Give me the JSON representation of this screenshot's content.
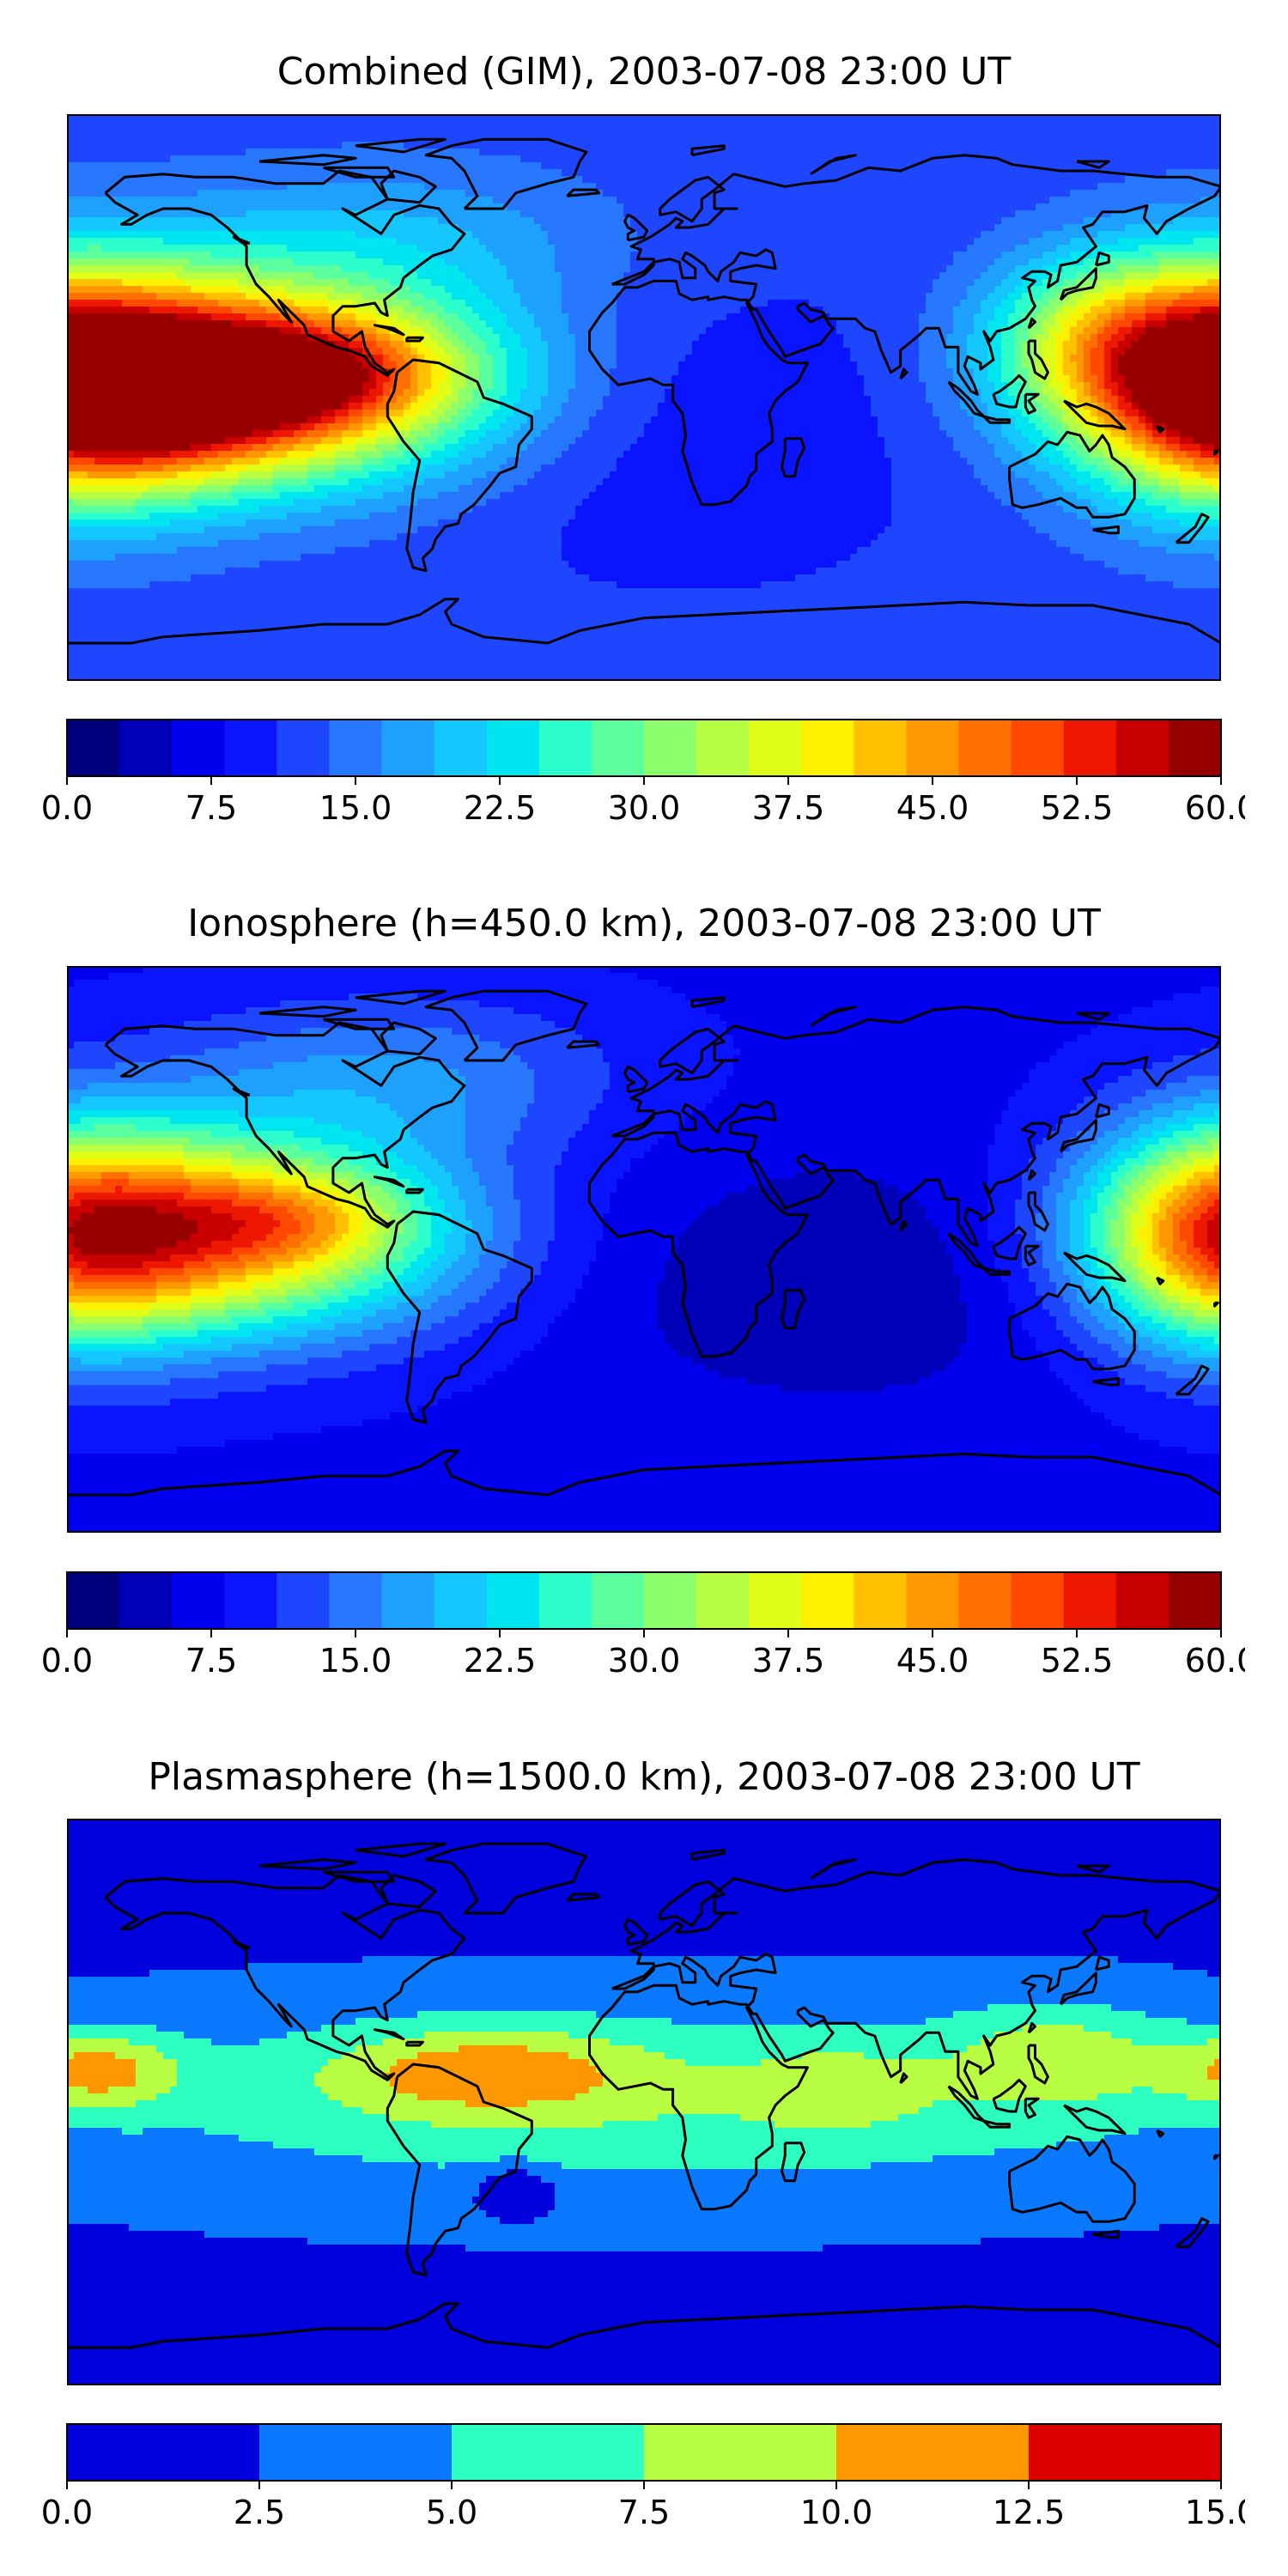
{
  "panels": [
    {
      "id": "combined",
      "title": "Combined (GIM), 2003-07-08 23:00 UT",
      "colorbar": {
        "vmin": 0,
        "vmax": 60,
        "step": 2.5,
        "ticks": [
          "0.0",
          "7.5",
          "15.0",
          "22.5",
          "30.0",
          "37.5",
          "45.0",
          "52.5",
          "60.0"
        ],
        "colors": [
          "#00007f",
          "#0000b8",
          "#0000ee",
          "#0a14ff",
          "#1e46ff",
          "#2878ff",
          "#1ea0ff",
          "#14c8ff",
          "#00e6f0",
          "#2cffcc",
          "#5cff9e",
          "#8cff6c",
          "#b8ff44",
          "#e0ff18",
          "#fff000",
          "#ffc000",
          "#ff9800",
          "#ff7000",
          "#ff4800",
          "#ee1800",
          "#c80000",
          "#980000"
        ]
      },
      "field": {
        "base": 11,
        "blobs": [
          {
            "lon": -130,
            "lat": 5,
            "dlon": 55,
            "dlat": 22,
            "amp": 40
          },
          {
            "lon": -105,
            "lat": 8,
            "dlon": 32,
            "dlat": 12,
            "amp": 14
          },
          {
            "lon": -150,
            "lat": -2,
            "dlon": 30,
            "dlat": 14,
            "amp": 8
          },
          {
            "lon": 180,
            "lat": 5,
            "dlon": 32,
            "dlat": 26,
            "amp": 30
          },
          {
            "lon": 140,
            "lat": 20,
            "dlon": 25,
            "dlat": 18,
            "amp": 12
          },
          {
            "lon": -80,
            "lat": 50,
            "dlon": 50,
            "dlat": 18,
            "amp": 6
          },
          {
            "lon": 10,
            "lat": -10,
            "dlon": 60,
            "dlat": 35,
            "amp": -3
          }
        ]
      }
    },
    {
      "id": "ionosphere",
      "title": "Ionosphere  (h=450.0 km), 2003-07-08 23:00 UT",
      "colorbar": {
        "vmin": 0,
        "vmax": 60,
        "step": 2.5,
        "ticks": [
          "0.0",
          "7.5",
          "15.0",
          "22.5",
          "30.0",
          "37.5",
          "45.0",
          "52.5",
          "60.0"
        ],
        "colors": [
          "#00007f",
          "#0000b8",
          "#0000ee",
          "#0a14ff",
          "#1e46ff",
          "#2878ff",
          "#1ea0ff",
          "#14c8ff",
          "#00e6f0",
          "#2cffcc",
          "#5cff9e",
          "#8cff6c",
          "#b8ff44",
          "#e0ff18",
          "#fff000",
          "#ffc000",
          "#ff9800",
          "#ff7000",
          "#ff4800",
          "#ee1800",
          "#c80000",
          "#980000"
        ]
      },
      "field": {
        "base": 7,
        "blobs": [
          {
            "lon": -130,
            "lat": 5,
            "dlon": 50,
            "dlat": 22,
            "amp": 32
          },
          {
            "lon": -110,
            "lat": 10,
            "dlon": 25,
            "dlat": 10,
            "amp": 8
          },
          {
            "lon": 180,
            "lat": 5,
            "dlon": 30,
            "dlat": 25,
            "amp": 26
          },
          {
            "lon": -80,
            "lat": 55,
            "dlon": 50,
            "dlat": 18,
            "amp": 8
          },
          {
            "lon": 60,
            "lat": -10,
            "dlon": 60,
            "dlat": 30,
            "amp": -4
          }
        ]
      }
    },
    {
      "id": "plasmasphere",
      "title": "Plasmasphere (h=1500.0 km), 2003-07-08 23:00 UT",
      "colorbar": {
        "vmin": 0,
        "vmax": 15,
        "step": 2.5,
        "ticks": [
          "0.0",
          "2.5",
          "5.0",
          "7.5",
          "10.0",
          "12.5",
          "15.0"
        ],
        "colors": [
          "#0000dd",
          "#0a78ff",
          "#2cffc0",
          "#b8ff44",
          "#ff9800",
          "#dd0000"
        ]
      },
      "field": {
        "base": 2,
        "blobs": [
          {
            "lon": 0,
            "lat": 0,
            "dlon": 140,
            "dlat": 22,
            "amp": 5
          },
          {
            "lon": -50,
            "lat": 10,
            "dlon": 35,
            "dlat": 10,
            "amp": 6
          },
          {
            "lon": -170,
            "lat": 10,
            "dlon": 18,
            "dlat": 9,
            "amp": 7
          },
          {
            "lon": 130,
            "lat": 15,
            "dlon": 25,
            "dlat": 12,
            "amp": 5
          },
          {
            "lon": 60,
            "lat": 5,
            "dlon": 20,
            "dlat": 10,
            "amp": 3
          },
          {
            "lon": -40,
            "lat": -28,
            "dlon": 8,
            "dlat": 5,
            "amp": -5
          }
        ]
      }
    }
  ]
}
